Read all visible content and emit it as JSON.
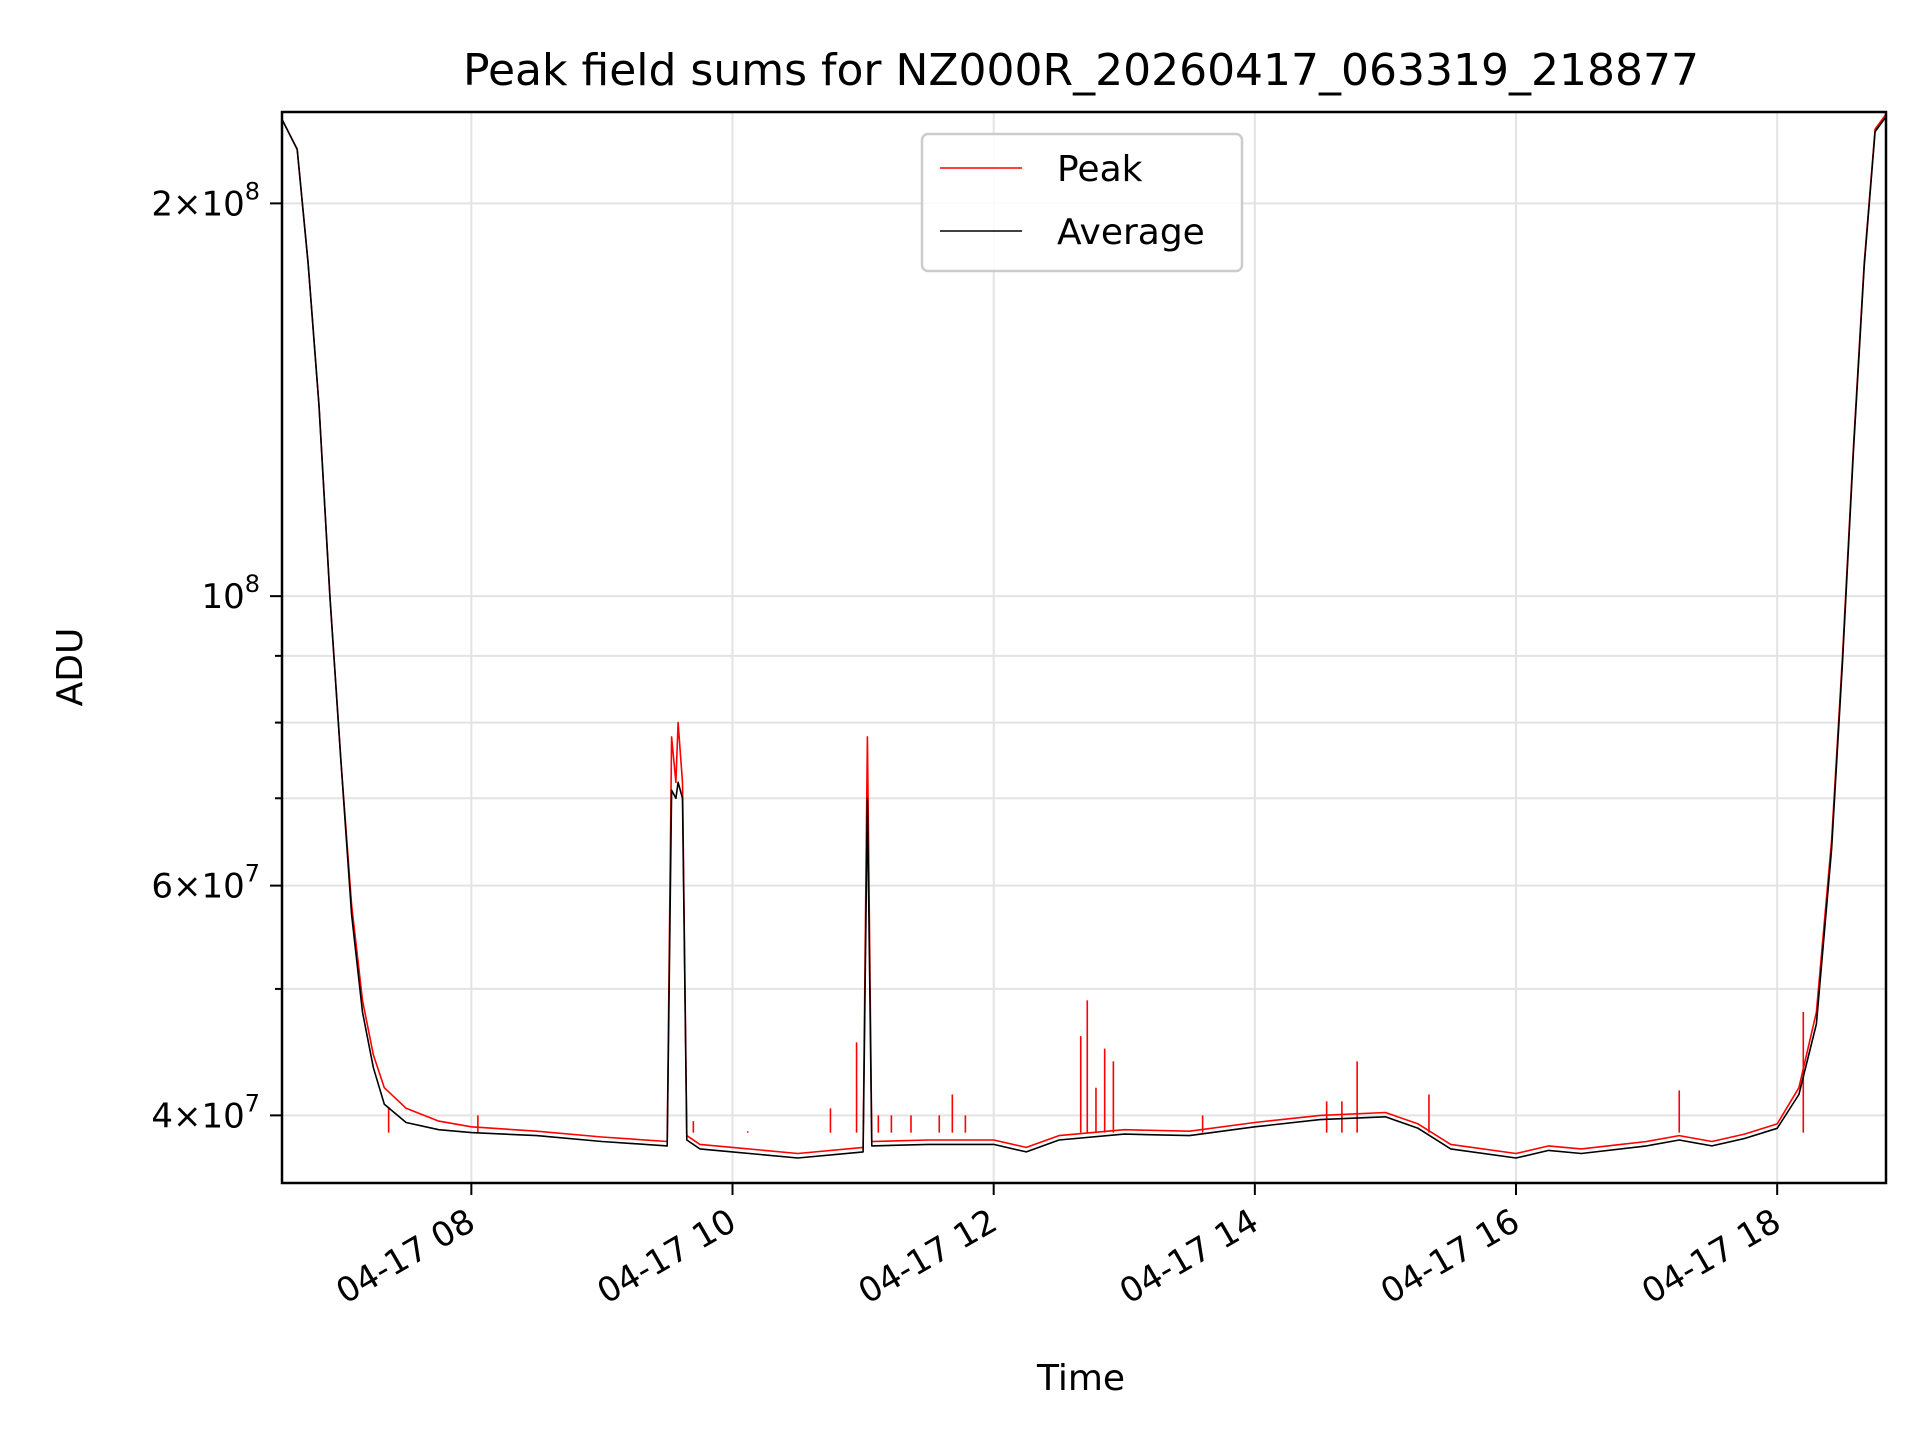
{
  "chart_data": {
    "type": "line",
    "title": "Peak field sums for NZ000R_20260417_063319_218877",
    "xlabel": "Time",
    "ylabel": "ADU",
    "yscale": "log",
    "grid": true,
    "legend_position": "top-center",
    "xlim": [
      "2026-04-17 06:33",
      "2026-04-17 18:50"
    ],
    "ylim": [
      35500000,
      235000000
    ],
    "x_ticks": [
      "04-17 08",
      "04-17 10",
      "04-17 12",
      "04-17 14",
      "04-17 16",
      "04-17 18"
    ],
    "y_ticks": [
      {
        "value": 40000000,
        "mantissa": "4",
        "exp": "7"
      },
      {
        "value": 60000000,
        "mantissa": "6",
        "exp": "7"
      },
      {
        "value": 100000000,
        "mantissa": "",
        "exp": "8"
      },
      {
        "value": 200000000,
        "mantissa": "2",
        "exp": "8"
      }
    ],
    "y_minor_ticks": [
      50000000,
      70000000,
      80000000,
      90000000
    ],
    "colors": {
      "peak": "#ff0000",
      "average": "#000000"
    },
    "series": [
      {
        "name": "Peak",
        "color": "#ff0000",
        "points": [
          [
            "06:33",
            232000000
          ],
          [
            "06:40",
            220000000
          ],
          [
            "06:45",
            180000000
          ],
          [
            "06:50",
            140000000
          ],
          [
            "06:55",
            100000000
          ],
          [
            "07:00",
            75000000
          ],
          [
            "07:05",
            58000000
          ],
          [
            "07:10",
            49000000
          ],
          [
            "07:15",
            44500000
          ],
          [
            "07:20",
            42000000
          ],
          [
            "07:30",
            40500000
          ],
          [
            "07:45",
            39600000
          ],
          [
            "08:00",
            39200000
          ],
          [
            "08:30",
            38900000
          ],
          [
            "09:00",
            38500000
          ],
          [
            "09:30",
            38200000
          ],
          [
            "09:32",
            78000000
          ],
          [
            "09:34",
            72000000
          ],
          [
            "09:35",
            80000000
          ],
          [
            "09:37",
            72000000
          ],
          [
            "09:39",
            38600000
          ],
          [
            "09:45",
            38000000
          ],
          [
            "10:00",
            37800000
          ],
          [
            "10:30",
            37400000
          ],
          [
            "11:00",
            37800000
          ],
          [
            "11:02",
            78000000
          ],
          [
            "11:04",
            38200000
          ],
          [
            "11:30",
            38300000
          ],
          [
            "12:00",
            38300000
          ],
          [
            "12:15",
            37800000
          ],
          [
            "12:30",
            38600000
          ],
          [
            "13:00",
            39000000
          ],
          [
            "13:30",
            38900000
          ],
          [
            "14:00",
            39500000
          ],
          [
            "14:30",
            40000000
          ],
          [
            "15:00",
            40200000
          ],
          [
            "15:15",
            39400000
          ],
          [
            "15:30",
            38000000
          ],
          [
            "16:00",
            37400000
          ],
          [
            "16:15",
            37900000
          ],
          [
            "16:30",
            37700000
          ],
          [
            "17:00",
            38200000
          ],
          [
            "17:15",
            38600000
          ],
          [
            "17:30",
            38200000
          ],
          [
            "17:45",
            38700000
          ],
          [
            "18:00",
            39400000
          ],
          [
            "18:10",
            42000000
          ],
          [
            "18:18",
            48000000
          ],
          [
            "18:25",
            65000000
          ],
          [
            "18:30",
            90000000
          ],
          [
            "18:35",
            130000000
          ],
          [
            "18:40",
            180000000
          ],
          [
            "18:45",
            228000000
          ],
          [
            "18:50",
            234000000
          ]
        ],
        "spikes": [
          [
            "07:22",
            40600000
          ],
          [
            "08:03",
            40000000
          ],
          [
            "09:42",
            39600000
          ],
          [
            "10:07",
            38900000
          ],
          [
            "10:45",
            40500000
          ],
          [
            "10:57",
            45500000
          ],
          [
            "11:07",
            40000000
          ],
          [
            "11:13",
            40000000
          ],
          [
            "11:22",
            40000000
          ],
          [
            "11:35",
            40000000
          ],
          [
            "11:41",
            41500000
          ],
          [
            "11:47",
            40000000
          ],
          [
            "12:40",
            46000000
          ],
          [
            "12:43",
            49000000
          ],
          [
            "12:47",
            42000000
          ],
          [
            "12:51",
            45000000
          ],
          [
            "12:55",
            44000000
          ],
          [
            "13:36",
            40000000
          ],
          [
            "14:33",
            41000000
          ],
          [
            "14:40",
            41000000
          ],
          [
            "14:47",
            44000000
          ],
          [
            "15:20",
            41500000
          ],
          [
            "17:15",
            41800000
          ],
          [
            "18:12",
            48000000
          ]
        ]
      },
      {
        "name": "Average",
        "color": "#000000",
        "points": [
          [
            "06:33",
            232000000
          ],
          [
            "06:40",
            220000000
          ],
          [
            "06:45",
            180000000
          ],
          [
            "06:50",
            140000000
          ],
          [
            "06:55",
            100000000
          ],
          [
            "07:00",
            75000000
          ],
          [
            "07:05",
            57000000
          ],
          [
            "07:10",
            48000000
          ],
          [
            "07:15",
            43500000
          ],
          [
            "07:20",
            40800000
          ],
          [
            "07:30",
            39500000
          ],
          [
            "07:45",
            39000000
          ],
          [
            "08:00",
            38800000
          ],
          [
            "08:30",
            38600000
          ],
          [
            "09:00",
            38200000
          ],
          [
            "09:30",
            37900000
          ],
          [
            "09:32",
            71000000
          ],
          [
            "09:34",
            70000000
          ],
          [
            "09:35",
            72000000
          ],
          [
            "09:37",
            70000000
          ],
          [
            "09:39",
            38300000
          ],
          [
            "09:45",
            37700000
          ],
          [
            "10:00",
            37500000
          ],
          [
            "10:30",
            37100000
          ],
          [
            "11:00",
            37500000
          ],
          [
            "11:02",
            70000000
          ],
          [
            "11:04",
            37900000
          ],
          [
            "11:30",
            38000000
          ],
          [
            "12:00",
            38000000
          ],
          [
            "12:15",
            37500000
          ],
          [
            "12:30",
            38300000
          ],
          [
            "13:00",
            38700000
          ],
          [
            "13:30",
            38600000
          ],
          [
            "14:00",
            39200000
          ],
          [
            "14:30",
            39700000
          ],
          [
            "15:00",
            39900000
          ],
          [
            "15:15",
            39100000
          ],
          [
            "15:30",
            37700000
          ],
          [
            "16:00",
            37100000
          ],
          [
            "16:15",
            37600000
          ],
          [
            "16:30",
            37400000
          ],
          [
            "17:00",
            37900000
          ],
          [
            "17:15",
            38300000
          ],
          [
            "17:30",
            37900000
          ],
          [
            "17:45",
            38400000
          ],
          [
            "18:00",
            39100000
          ],
          [
            "18:10",
            41500000
          ],
          [
            "18:18",
            47000000
          ],
          [
            "18:25",
            64000000
          ],
          [
            "18:30",
            89000000
          ],
          [
            "18:35",
            129000000
          ],
          [
            "18:40",
            179000000
          ],
          [
            "18:45",
            227000000
          ],
          [
            "18:50",
            233000000
          ]
        ]
      }
    ]
  }
}
